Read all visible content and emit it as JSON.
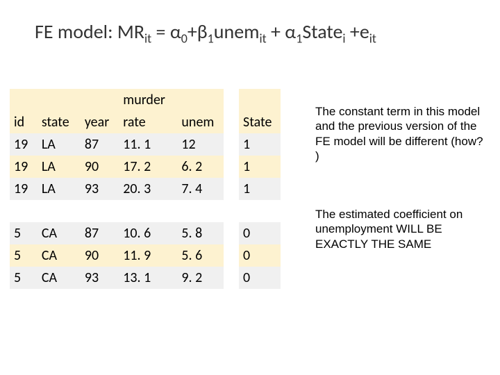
{
  "title": {
    "plain": "FE model: MR",
    "sub1": "it",
    "mid1": " = α",
    "sub0a": "0",
    "mid1b": "+β",
    "sub1b": "1",
    "mid2": "unem",
    "sub_it2": "it",
    "mid3": " + α",
    "sub1c": "1",
    "mid4": "State",
    "sub_i": "i",
    "mid5": " +e",
    "sub_it3": "it"
  },
  "table": {
    "headers": {
      "id": "id",
      "state": "state",
      "year": "year",
      "murder_top": "murder",
      "murder_bot": "rate",
      "unem": "unem",
      "state_dummy": "State"
    },
    "rows": [
      {
        "id": "19",
        "state": "LA",
        "year": "87",
        "mr": "11. 1",
        "unem": "12",
        "State": "1"
      },
      {
        "id": "19",
        "state": "LA",
        "year": "90",
        "mr": "17. 2",
        "unem": "6. 2",
        "State": "1"
      },
      {
        "id": "19",
        "state": "LA",
        "year": "93",
        "mr": "20. 3",
        "unem": "7. 4",
        "State": "1"
      },
      {
        "id": "5",
        "state": "CA",
        "year": "87",
        "mr": "10. 6",
        "unem": "5. 8",
        "State": "0"
      },
      {
        "id": "5",
        "state": "CA",
        "year": "90",
        "mr": "11. 9",
        "unem": "5. 6",
        "State": "0"
      },
      {
        "id": "5",
        "state": "CA",
        "year": "93",
        "mr": "13. 1",
        "unem": "9. 2",
        "State": "0"
      }
    ]
  },
  "paragraphs": {
    "p1": "The constant term in this model and the previous version of the FE model will be different (how? )",
    "p2": "The estimated coefficient on unemployment WILL BE EXACTLY THE SAME"
  },
  "style": {
    "header_bg": "#fdf2d0",
    "odd_bg": "#fdf2d0",
    "even_bg": "#f0f0f0",
    "title_color": "#333333"
  }
}
